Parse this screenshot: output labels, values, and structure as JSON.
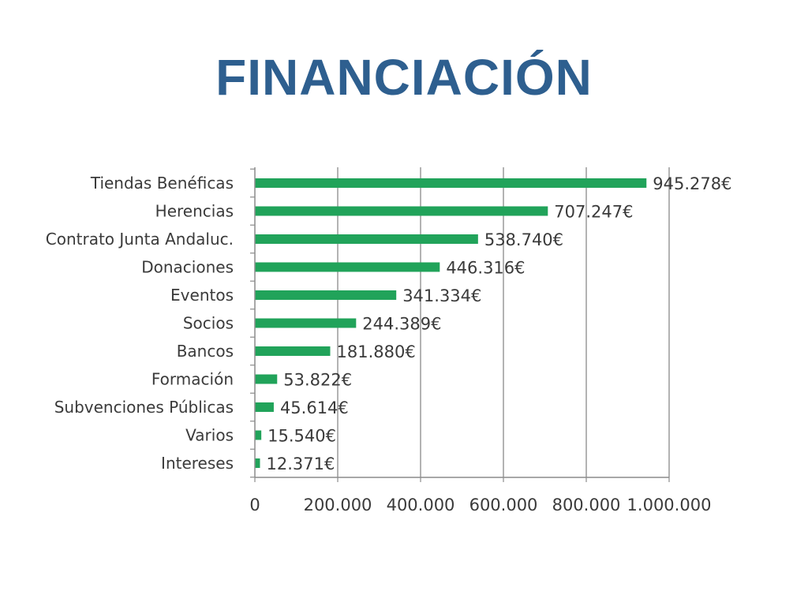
{
  "slide": {
    "title": "FINANCIACIÓN"
  },
  "colors": {
    "title": "#2e5f8f",
    "bar": "#21a35a",
    "grid": "#9a9a9a",
    "axis": "#8c8c8c",
    "text": "#3a3a3a"
  },
  "chart_data": {
    "type": "bar",
    "orientation": "horizontal",
    "title": "",
    "xlabel": "",
    "ylabel": "",
    "categories": [
      "Tiendas Benéficas",
      "Herencias",
      "Contrato Junta Andaluc.",
      "Donaciones",
      "Eventos",
      "Socios",
      "Bancos",
      "Formación",
      "Subvenciones Públicas",
      "Varios",
      "Intereses"
    ],
    "values": [
      945278,
      707247,
      538740,
      446316,
      341334,
      244389,
      181880,
      53822,
      45614,
      15540,
      12371
    ],
    "data_labels": [
      "945.278€",
      "707.247€",
      "538.740€",
      "446.316€",
      "341.334€",
      "244.389€",
      "181.880€",
      "53.822€",
      "45.614€",
      "15.540€",
      "12.371€"
    ],
    "xlim": [
      0,
      1000000
    ],
    "x_ticks": [
      0,
      200000,
      400000,
      600000,
      800000,
      1000000
    ],
    "x_tick_labels": [
      "0",
      "200.000",
      "400.000",
      "600.000",
      "800.000",
      "1.000.000"
    ],
    "grid": "vertical",
    "legend": "none"
  }
}
